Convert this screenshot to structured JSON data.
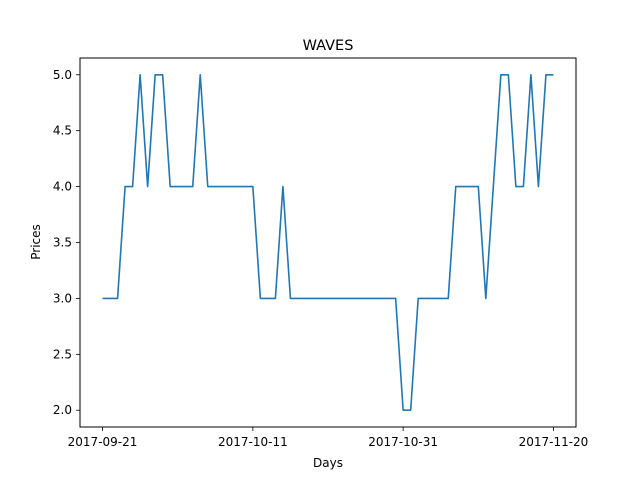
{
  "chart_data": {
    "type": "line",
    "title": "WAVES",
    "xlabel": "Days",
    "ylabel": "Prices",
    "x_start": "2017-09-21",
    "x_end": "2017-11-20",
    "xlim": [
      "2017-09-18",
      "2017-11-23"
    ],
    "ylim": [
      1.85,
      5.15
    ],
    "x_ticks": [
      "2017-09-21",
      "2017-10-11",
      "2017-10-31",
      "2017-11-20"
    ],
    "y_ticks": [
      "2.0",
      "2.5",
      "3.0",
      "3.5",
      "4.0",
      "4.5",
      "5.0"
    ],
    "grid": false,
    "line_color": "#1f77b4",
    "series": [
      {
        "values": [
          3,
          3,
          3,
          4,
          4,
          5,
          4,
          5,
          5,
          4,
          4,
          4,
          4,
          5,
          4,
          4,
          4,
          4,
          4,
          4,
          4,
          3,
          3,
          3,
          4,
          3,
          3,
          3,
          3,
          3,
          3,
          3,
          3,
          3,
          3,
          3,
          3,
          3,
          3,
          3,
          2,
          2,
          3,
          3,
          3,
          3,
          3,
          4,
          4,
          4,
          4,
          3,
          4,
          5,
          5,
          4,
          4,
          5,
          4,
          5,
          5
        ]
      }
    ]
  }
}
